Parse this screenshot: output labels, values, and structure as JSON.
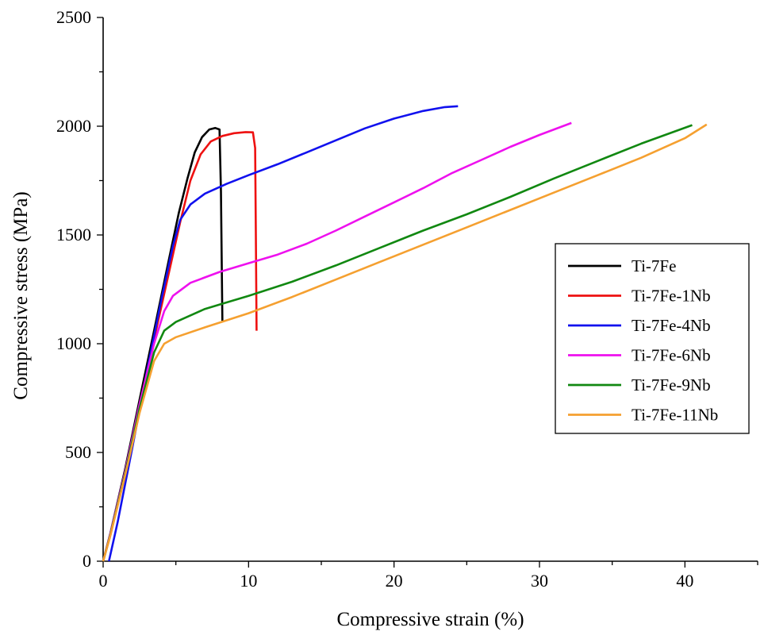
{
  "chart_data": {
    "type": "line",
    "xlabel": "Compressive strain (%)",
    "ylabel": "Compressive stress (MPa)",
    "xlim": [
      0,
      45
    ],
    "ylim": [
      0,
      2500
    ],
    "xticks": [
      0,
      10,
      20,
      30,
      40
    ],
    "yticks": [
      0,
      500,
      1000,
      1500,
      2000,
      2500
    ],
    "grid": false,
    "legend_position": "right",
    "series": [
      {
        "name": "Ti-7Fe",
        "color": "#000000",
        "points": [
          [
            0,
            0
          ],
          [
            0.5,
            130
          ],
          [
            1.5,
            420
          ],
          [
            2.5,
            740
          ],
          [
            3.5,
            1060
          ],
          [
            4.5,
            1380
          ],
          [
            5.2,
            1600
          ],
          [
            5.8,
            1760
          ],
          [
            6.3,
            1880
          ],
          [
            6.8,
            1950
          ],
          [
            7.3,
            1985
          ],
          [
            7.7,
            1992
          ],
          [
            8.0,
            1985
          ],
          [
            8.1,
            1700
          ],
          [
            8.15,
            1400
          ],
          [
            8.2,
            1105
          ]
        ]
      },
      {
        "name": "Ti-7Fe-1Nb",
        "color": "#ee1111",
        "points": [
          [
            0,
            0
          ],
          [
            0.5,
            120
          ],
          [
            1.5,
            400
          ],
          [
            2.5,
            710
          ],
          [
            3.5,
            1020
          ],
          [
            4.5,
            1320
          ],
          [
            5.3,
            1560
          ],
          [
            6.0,
            1750
          ],
          [
            6.7,
            1870
          ],
          [
            7.4,
            1930
          ],
          [
            8.2,
            1955
          ],
          [
            9.0,
            1968
          ],
          [
            9.8,
            1973
          ],
          [
            10.3,
            1972
          ],
          [
            10.45,
            1900
          ],
          [
            10.5,
            1500
          ],
          [
            10.55,
            1060
          ]
        ]
      },
      {
        "name": "Ti-7Fe-4Nb",
        "color": "#1111ee",
        "points": [
          [
            0.4,
            0
          ],
          [
            1.0,
            180
          ],
          [
            2.0,
            520
          ],
          [
            3.0,
            870
          ],
          [
            4.0,
            1200
          ],
          [
            4.8,
            1450
          ],
          [
            5.3,
            1570
          ],
          [
            6.0,
            1640
          ],
          [
            7.0,
            1690
          ],
          [
            8.5,
            1735
          ],
          [
            10.0,
            1775
          ],
          [
            12.0,
            1825
          ],
          [
            14.0,
            1880
          ],
          [
            16.0,
            1935
          ],
          [
            18.0,
            1990
          ],
          [
            20.0,
            2035
          ],
          [
            22.0,
            2070
          ],
          [
            23.5,
            2088
          ],
          [
            24.4,
            2092
          ]
        ]
      },
      {
        "name": "Ti-7Fe-6Nb",
        "color": "#ee11ee",
        "points": [
          [
            0,
            0
          ],
          [
            0.5,
            130
          ],
          [
            1.5,
            410
          ],
          [
            2.5,
            720
          ],
          [
            3.5,
            1000
          ],
          [
            4.2,
            1150
          ],
          [
            4.8,
            1220
          ],
          [
            6.0,
            1280
          ],
          [
            8.0,
            1330
          ],
          [
            10.0,
            1370
          ],
          [
            12.0,
            1410
          ],
          [
            14.0,
            1460
          ],
          [
            16.0,
            1520
          ],
          [
            18.0,
            1585
          ],
          [
            20.0,
            1650
          ],
          [
            22.0,
            1715
          ],
          [
            24.0,
            1785
          ],
          [
            26.0,
            1845
          ],
          [
            28.0,
            1905
          ],
          [
            30.0,
            1960
          ],
          [
            32.2,
            2015
          ]
        ]
      },
      {
        "name": "Ti-7Fe-9Nb",
        "color": "#118811",
        "points": [
          [
            0,
            0
          ],
          [
            0.5,
            125
          ],
          [
            1.5,
            400
          ],
          [
            2.5,
            700
          ],
          [
            3.5,
            960
          ],
          [
            4.2,
            1060
          ],
          [
            5.0,
            1100
          ],
          [
            7.0,
            1160
          ],
          [
            10.0,
            1220
          ],
          [
            13.0,
            1285
          ],
          [
            16.0,
            1360
          ],
          [
            19.0,
            1440
          ],
          [
            22.0,
            1520
          ],
          [
            25.0,
            1595
          ],
          [
            28.0,
            1675
          ],
          [
            31.0,
            1760
          ],
          [
            34.0,
            1840
          ],
          [
            37.0,
            1920
          ],
          [
            40.5,
            2005
          ]
        ]
      },
      {
        "name": "Ti-7Fe-11Nb",
        "color": "#f5a030",
        "points": [
          [
            0,
            0
          ],
          [
            0.5,
            120
          ],
          [
            1.5,
            390
          ],
          [
            2.5,
            680
          ],
          [
            3.5,
            920
          ],
          [
            4.2,
            1000
          ],
          [
            5.0,
            1030
          ],
          [
            7.0,
            1075
          ],
          [
            10.0,
            1140
          ],
          [
            13.0,
            1215
          ],
          [
            16.0,
            1295
          ],
          [
            19.0,
            1375
          ],
          [
            22.0,
            1455
          ],
          [
            25.0,
            1535
          ],
          [
            28.0,
            1615
          ],
          [
            31.0,
            1695
          ],
          [
            34.0,
            1775
          ],
          [
            37.0,
            1855
          ],
          [
            40.0,
            1945
          ],
          [
            41.5,
            2008
          ]
        ]
      }
    ]
  }
}
